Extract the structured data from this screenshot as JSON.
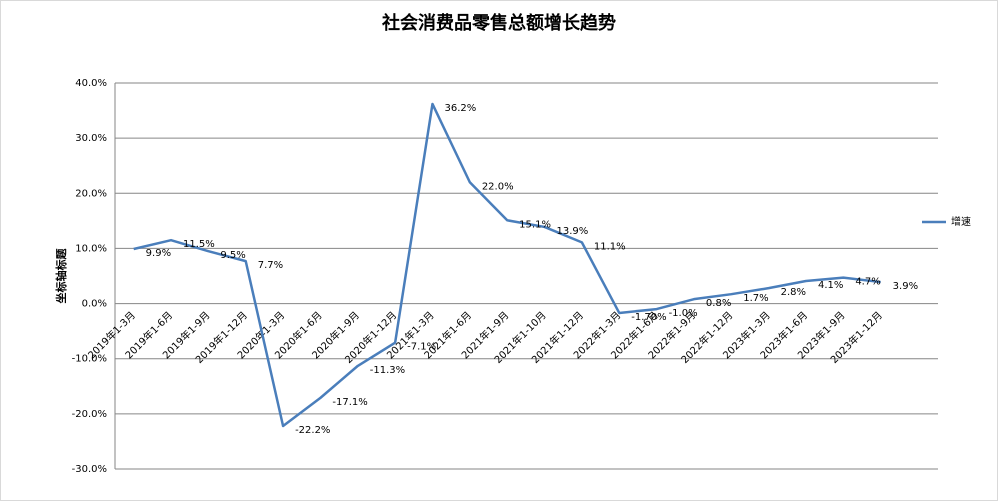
{
  "chart_data": {
    "type": "line",
    "title": "社会消费品零售总额增长趋势",
    "y_axis_label": "坐标轴标题",
    "categories": [
      "2019年1-3月",
      "2019年1-6月",
      "2019年1-9月",
      "2019年1-12月",
      "2020年1-3月",
      "2020年1-6月",
      "2020年1-9月",
      "2020年1-12月",
      "2021年1-3月",
      "2021年1-6月",
      "2021年1-9月",
      "2021年1-10月",
      "2021年1-12月",
      "2022年1-3月",
      "2022年1-6月",
      "2022年1-9月",
      "2022年1-12月",
      "2023年1-3月",
      "2023年1-6月",
      "2023年1-9月",
      "2023年1-12月"
    ],
    "series": [
      {
        "name": "增速",
        "color": "#4a7ebb",
        "values": [
          9.9,
          11.5,
          9.5,
          7.7,
          -22.2,
          -17.1,
          -11.3,
          -7.1,
          36.2,
          22.0,
          15.1,
          13.9,
          11.1,
          -1.7,
          -1.0,
          0.8,
          1.7,
          2.8,
          4.1,
          4.7,
          3.9
        ],
        "value_labels": [
          "9.9%",
          "11.5%",
          "9.5%",
          "7.7%",
          "-22.2%",
          "-17.1%",
          "-11.3%",
          "-7.1%",
          "36.2%",
          "22.0%",
          "15.1%",
          "13.9%",
          "11.1%",
          "-1.70%",
          "-1.0%",
          "0.8%",
          "1.7%",
          "2.8%",
          "4.1%",
          "4.7%",
          "3.9%"
        ]
      }
    ],
    "ylim": [
      -30,
      40
    ],
    "yticks": [
      {
        "value": -30,
        "label": "-30.0%"
      },
      {
        "value": -20,
        "label": "-20.0%"
      },
      {
        "value": -10,
        "label": "-10.0%"
      },
      {
        "value": 0,
        "label": "0.0%"
      },
      {
        "value": 10,
        "label": "10.0%"
      },
      {
        "value": 20,
        "label": "20.0%"
      },
      {
        "value": 30,
        "label": "30.0%"
      },
      {
        "value": 40,
        "label": "40.0%"
      }
    ],
    "grid": true,
    "legend": "right"
  }
}
